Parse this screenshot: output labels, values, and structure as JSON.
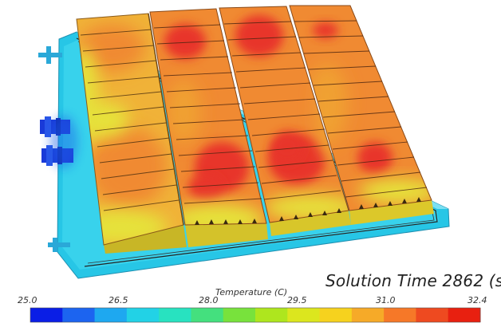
{
  "solution_time": "Solution Time 2862 (s",
  "legend": {
    "title": "Temperature (C)",
    "min": 25.0,
    "max": 32.4,
    "ticks": [
      "25.0",
      "26.5",
      "28.0",
      "29.5",
      "31.0",
      "32.4"
    ],
    "colors": [
      "#0a1ee6",
      "#1c64f0",
      "#1ea8f0",
      "#22d2e6",
      "#28e2c0",
      "#44e07e",
      "#78e23c",
      "#aee61e",
      "#dce61e",
      "#f6d21e",
      "#f6aa28",
      "#f67828",
      "#ee4a20",
      "#e82010"
    ]
  },
  "colors": {
    "plate": "#27c6e6",
    "cell_warm": "#f08a32",
    "cell_hot": "#e8342a",
    "cell_mild": "#f0b238",
    "cell_cool": "#e6e23a",
    "inlet": "#1a3ad8"
  }
}
